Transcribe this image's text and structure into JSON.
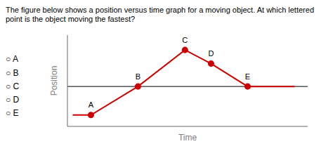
{
  "chart_data": {
    "type": "line",
    "title": "The figure below shows a position versus time graph for a moving object. At which lettered point is the object moving the fastest?",
    "xlabel": "Time",
    "ylabel": "Position",
    "x": [
      0.5,
      1.2,
      3.0,
      4.8,
      5.8,
      7.2,
      9.0
    ],
    "values": [
      1.5,
      1.5,
      4.0,
      7.2,
      6.0,
      4.0,
      4.0
    ],
    "points": [
      {
        "label": "A",
        "x": 1.2,
        "y": 1.5
      },
      {
        "label": "B",
        "x": 3.0,
        "y": 4.0
      },
      {
        "label": "C",
        "x": 4.8,
        "y": 7.2
      },
      {
        "label": "D",
        "x": 5.8,
        "y": 6.0
      },
      {
        "label": "E",
        "x": 7.2,
        "y": 4.0
      }
    ],
    "hline": 4.0,
    "xlim": [
      0.3,
      9.5
    ],
    "ylim": [
      0.5,
      8.5
    ],
    "tick_labels": false,
    "grid": false,
    "color": "#cc0000",
    "choices": [
      "○ A",
      "○ B",
      "○ C",
      "○ D",
      "○ E"
    ]
  }
}
